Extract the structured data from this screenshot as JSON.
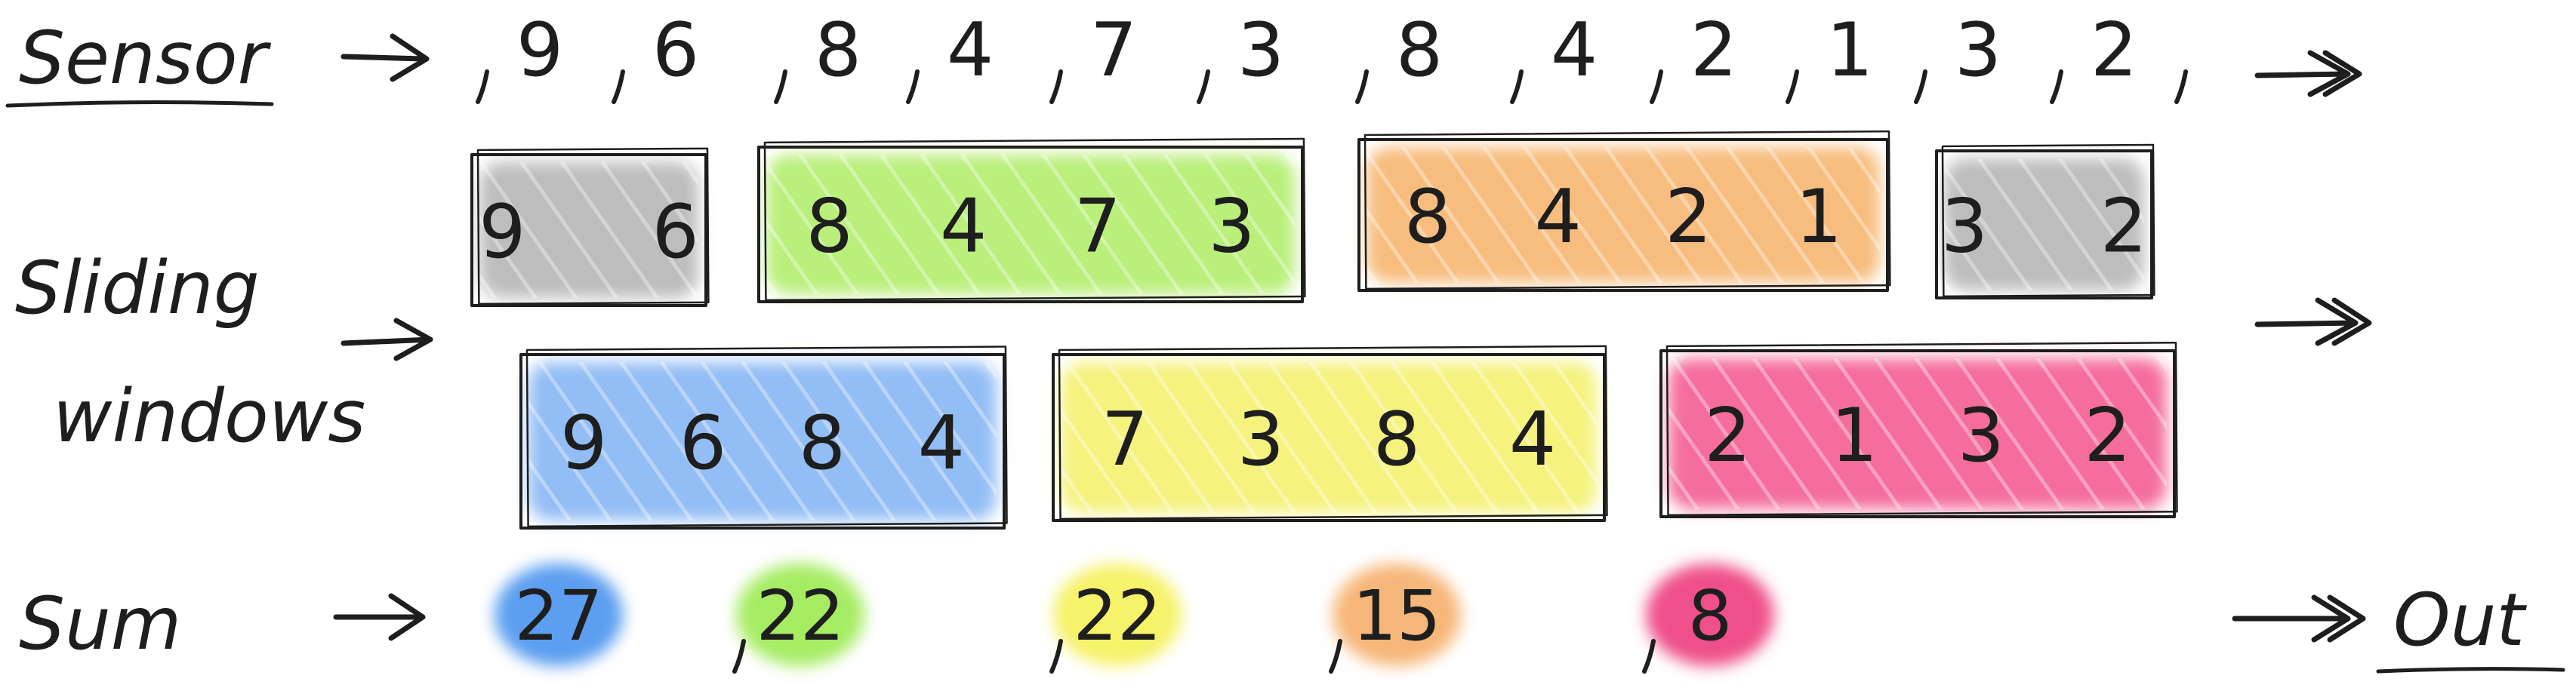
{
  "labels": {
    "sensor": "Sensor",
    "sliding_line1": "Sliding",
    "sliding_line2": "windows",
    "sum": "Sum",
    "out": "Out"
  },
  "sensor_stream": [
    "9",
    "6",
    "8",
    "4",
    "7",
    "3",
    "8",
    "4",
    "2",
    "1",
    "3",
    "2"
  ],
  "tumbling_windows": [
    {
      "values": [
        "9",
        "6"
      ],
      "color": "#bdbdbd"
    },
    {
      "values": [
        "8",
        "4",
        "7",
        "3"
      ],
      "color": "#b9ef7a"
    },
    {
      "values": [
        "8",
        "4",
        "2",
        "1"
      ],
      "color": "#f7bd7e"
    },
    {
      "values": [
        "3",
        "2"
      ],
      "color": "#bdbdbd"
    }
  ],
  "sliding_windows": [
    {
      "values": [
        "9",
        "6",
        "8",
        "4"
      ],
      "color": "#93bdf5"
    },
    {
      "values": [
        "7",
        "3",
        "8",
        "4"
      ],
      "color": "#f5f27e"
    },
    {
      "values": [
        "2",
        "1",
        "3",
        "2"
      ],
      "color": "#f46d9d"
    }
  ],
  "sums": [
    {
      "value": "27",
      "color": "#5c9ef0"
    },
    {
      "value": "22",
      "color": "#a6ec63"
    },
    {
      "value": "22",
      "color": "#f6f269"
    },
    {
      "value": "15",
      "color": "#f7b679"
    },
    {
      "value": "8",
      "color": "#ef4f8a"
    }
  ]
}
